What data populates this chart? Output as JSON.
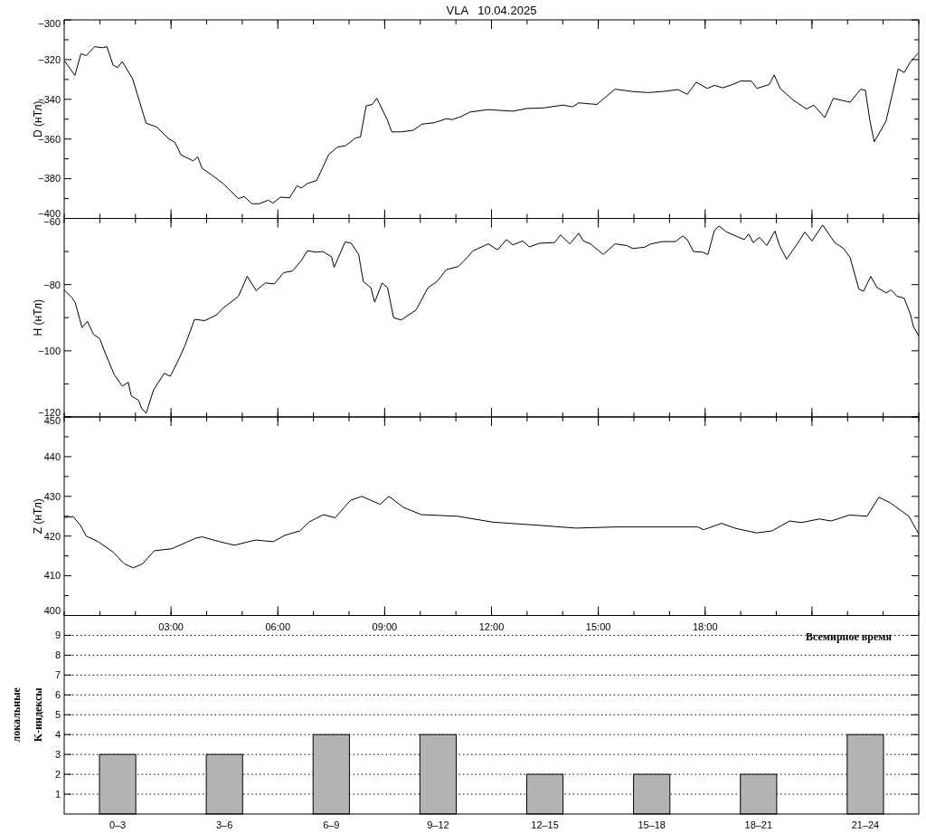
{
  "chart_data": [
    {
      "type": "line",
      "title": "VLA   10.04.2025",
      "ylabel": "D (нТл)",
      "xlim": [
        0,
        24
      ],
      "ylim": [
        -400,
        -300
      ],
      "yticks": [
        -300,
        -320,
        -340,
        -360,
        -380,
        -400
      ],
      "xticks": [
        {
          "value": 3,
          "label": null
        },
        {
          "value": 6,
          "label": null
        },
        {
          "value": 9,
          "label": null
        },
        {
          "value": 12,
          "label": null
        },
        {
          "value": 15,
          "label": null
        },
        {
          "value": 18,
          "label": null
        },
        {
          "value": 21,
          "label": null
        }
      ],
      "tick_labels": "y",
      "series": [
        {
          "color": "#000000",
          "x": [
            0,
            0.3,
            0.47,
            0.62,
            0.85,
            1.08,
            1.2,
            1.37,
            1.5,
            1.63,
            1.92,
            2.18,
            2.3,
            2.6,
            2.94,
            3.11,
            3.28,
            3.62,
            3.75,
            3.87,
            4.12,
            4.46,
            4.89,
            5.06,
            5.27,
            5.48,
            5.73,
            5.86,
            6.07,
            6.33,
            6.54,
            6.66,
            6.83,
            7.09,
            7.43,
            7.68,
            7.89,
            8.19,
            8.32,
            8.48,
            8.65,
            8.78,
            9.07,
            9.2,
            9.46,
            9.8,
            10.05,
            10.39,
            10.73,
            10.9,
            11.15,
            11.4,
            11.9,
            12.6,
            13.0,
            13.43,
            14.02,
            14.27,
            14.45,
            14.96,
            15.47,
            15.97,
            16.4,
            16.8,
            17.24,
            17.5,
            17.75,
            18.06,
            18.26,
            18.5,
            18.76,
            19.0,
            19.3,
            19.45,
            19.8,
            19.94,
            20.11,
            20.47,
            20.85,
            21.05,
            21.36,
            21.6,
            22.07,
            22.37,
            22.5,
            22.63,
            22.75,
            23.08,
            23.42,
            23.59,
            23.77,
            23.97
          ],
          "values": [
            -320.4,
            -328,
            -317,
            -318,
            -313.5,
            -314,
            -313.5,
            -322.7,
            -324,
            -321,
            -329.6,
            -345,
            -352,
            -354,
            -360,
            -361.7,
            -368,
            -371,
            -369,
            -374.7,
            -377.8,
            -382.4,
            -390,
            -389,
            -392.6,
            -392.6,
            -390.8,
            -392.3,
            -389.3,
            -389.6,
            -383.5,
            -384.7,
            -382.4,
            -380.9,
            -367.8,
            -364,
            -363.5,
            -359.4,
            -359,
            -343.3,
            -342.6,
            -339.5,
            -350.2,
            -356.4,
            -356.4,
            -355.6,
            -352.5,
            -351.8,
            -349.8,
            -350.2,
            -348.7,
            -346.4,
            -345.2,
            -346,
            -344.6,
            -344.4,
            -342.9,
            -343.8,
            -341.8,
            -342.6,
            -334.9,
            -336.1,
            -336.6,
            -336.1,
            -335.1,
            -337.5,
            -331.4,
            -334.5,
            -333,
            -334.2,
            -332.6,
            -330.8,
            -330.8,
            -334.5,
            -332.6,
            -327.7,
            -334.6,
            -340.3,
            -344.9,
            -342.9,
            -349.2,
            -339.5,
            -341.5,
            -334.9,
            -335.4,
            -351,
            -361.4,
            -351,
            -324.7,
            -326.5,
            -321.1,
            -317
          ]
        }
      ]
    },
    {
      "type": "line",
      "ylabel": "H (нТл)",
      "xlim": [
        0,
        24
      ],
      "ylim": [
        -120,
        -60
      ],
      "yticks": [
        -60,
        -80,
        -100,
        -120
      ],
      "xticks": [
        {
          "value": 3,
          "label": null
        },
        {
          "value": 6,
          "label": null
        },
        {
          "value": 9,
          "label": null
        },
        {
          "value": 12,
          "label": null
        },
        {
          "value": 15,
          "label": null
        },
        {
          "value": 18,
          "label": null
        },
        {
          "value": 21,
          "label": null
        }
      ],
      "tick_labels": "y",
      "series": [
        {
          "color": "#000000",
          "x": [
            0,
            0.23,
            0.31,
            0.5,
            0.65,
            0.82,
            1.0,
            1.16,
            1.41,
            1.63,
            1.8,
            1.88,
            2.09,
            2.17,
            2.3,
            2.51,
            2.81,
            2.98,
            3.23,
            3.4,
            3.66,
            3.95,
            4.29,
            4.46,
            4.89,
            5.14,
            5.39,
            5.65,
            5.9,
            6.16,
            6.41,
            6.66,
            6.83,
            7.09,
            7.26,
            7.51,
            7.58,
            7.89,
            8.06,
            8.27,
            8.4,
            8.61,
            8.72,
            8.93,
            9.08,
            9.25,
            9.46,
            9.88,
            10.22,
            10.47,
            10.73,
            11.07,
            11.32,
            11.48,
            11.91,
            12.17,
            12.42,
            12.6,
            12.88,
            13.06,
            13.35,
            13.77,
            13.94,
            14.2,
            14.45,
            14.58,
            14.78,
            15.14,
            15.47,
            15.8,
            15.97,
            16.3,
            16.48,
            16.8,
            17.17,
            17.37,
            17.5,
            17.67,
            17.93,
            18.08,
            18.26,
            18.39,
            18.6,
            19.1,
            19.22,
            19.35,
            19.53,
            19.73,
            19.96,
            20.09,
            20.29,
            20.6,
            20.8,
            21.0,
            21.3,
            21.64,
            21.89,
            22.07,
            22.32,
            22.45,
            22.65,
            22.83,
            23.09,
            23.22,
            23.39,
            23.59,
            23.77,
            23.85,
            24.0
          ],
          "values": [
            -81.6,
            -84.1,
            -85.5,
            -93,
            -91.1,
            -95,
            -96.4,
            -100.9,
            -107.3,
            -110.7,
            -109.5,
            -113.6,
            -115,
            -117.3,
            -118.9,
            -111.8,
            -106.8,
            -107.7,
            -102.3,
            -98.2,
            -90.5,
            -90.9,
            -89.1,
            -87.1,
            -83.6,
            -77.5,
            -81.8,
            -79.5,
            -79.8,
            -76.4,
            -75.9,
            -72.7,
            -69.8,
            -70.2,
            -70,
            -71.6,
            -74.8,
            -67.1,
            -67.5,
            -70.9,
            -79.1,
            -80.9,
            -85.3,
            -79.5,
            -80.9,
            -90,
            -90.7,
            -87.7,
            -80.9,
            -79.1,
            -75.5,
            -74.5,
            -71.8,
            -69.8,
            -67.7,
            -69.5,
            -66.4,
            -68,
            -66.8,
            -68.6,
            -67.5,
            -67.3,
            -65,
            -67.7,
            -64.5,
            -66.8,
            -67.7,
            -70.9,
            -67.7,
            -68.2,
            -69.1,
            -68.7,
            -67.7,
            -67,
            -67,
            -65.3,
            -66.4,
            -70,
            -70.2,
            -70.9,
            -63.6,
            -62.3,
            -64.1,
            -66.4,
            -64.7,
            -67.3,
            -65.7,
            -68.2,
            -63.8,
            -68.2,
            -72.3,
            -67.5,
            -64.1,
            -66.8,
            -62,
            -67.3,
            -69.1,
            -71.8,
            -81.4,
            -82,
            -77.5,
            -80.9,
            -82.5,
            -81.6,
            -83.5,
            -84.1,
            -89.1,
            -92.7,
            -95.5
          ]
        }
      ]
    },
    {
      "type": "line",
      "ylabel": "Z (нТл)",
      "xlabel": "Всемирное время",
      "xlim": [
        0,
        24
      ],
      "ylim": [
        400,
        450
      ],
      "yticks": [
        400,
        410,
        420,
        430,
        440,
        450
      ],
      "xticks": [
        {
          "value": 3,
          "label": "03:00"
        },
        {
          "value": 6,
          "label": "06:00"
        },
        {
          "value": 9,
          "label": "09:00"
        },
        {
          "value": 12,
          "label": "12:00"
        },
        {
          "value": 15,
          "label": "15:00"
        },
        {
          "value": 18,
          "label": "18:00"
        },
        {
          "value": 21,
          "label": null
        }
      ],
      "series": [
        {
          "color": "#000000",
          "x": [
            0,
            0.25,
            0.45,
            0.62,
            0.95,
            1.37,
            1.69,
            1.94,
            2.2,
            2.53,
            3.02,
            3.7,
            3.87,
            4.36,
            4.78,
            5.37,
            5.87,
            6.2,
            6.62,
            6.87,
            7.28,
            7.61,
            8.04,
            8.36,
            8.87,
            9.12,
            9.53,
            10.03,
            11.04,
            12.04,
            13.2,
            14.37,
            15.54,
            16.54,
            17.79,
            17.96,
            18.46,
            18.87,
            19.45,
            19.88,
            20.37,
            20.7,
            21.21,
            21.54,
            22.05,
            22.55,
            22.88,
            23.21,
            23.72,
            24.0
          ],
          "values": [
            424.7,
            424.9,
            422.8,
            420,
            418.6,
            416,
            413,
            412,
            413,
            416.3,
            416.8,
            419.5,
            419.8,
            418.6,
            417.7,
            419,
            418.6,
            420.2,
            421.3,
            423.5,
            425.4,
            424.6,
            429,
            430,
            428,
            430,
            427.2,
            425.4,
            425,
            423.5,
            422.8,
            422,
            422.3,
            422.3,
            422.3,
            421.6,
            423.2,
            421.9,
            420.8,
            421.3,
            423.8,
            423.4,
            424.3,
            423.8,
            425.3,
            425,
            429.8,
            428.3,
            425,
            420.5
          ]
        }
      ]
    },
    {
      "type": "bar",
      "ylabel": "локальные K-индексы",
      "categories": [
        "0–3",
        "3–6",
        "6–9",
        "9–12",
        "12–15",
        "15–18",
        "18–21",
        "21–24"
      ],
      "values": [
        3,
        3,
        4,
        4,
        2,
        2,
        2,
        4
      ],
      "color": "#b4b4b4",
      "ylim": [
        0,
        10
      ],
      "yticks": [
        1,
        2,
        3,
        4,
        5,
        6,
        7,
        8,
        9
      ],
      "grid": "y"
    }
  ]
}
